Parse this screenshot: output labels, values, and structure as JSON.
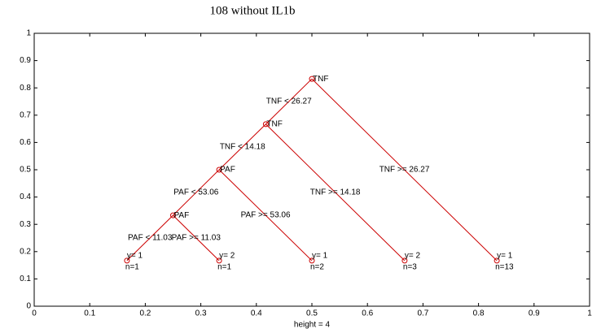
{
  "chart_data": {
    "type": "tree",
    "title": "108 without IL1b",
    "x_label": "height = 4",
    "xlim": [
      0,
      1
    ],
    "ylim": [
      0,
      1
    ],
    "xticks": [
      0,
      0.1,
      0.2,
      0.3,
      0.4,
      0.5,
      0.6,
      0.7,
      0.8,
      0.9,
      1
    ],
    "yticks": [
      0,
      0.1,
      0.2,
      0.3,
      0.4,
      0.5,
      0.6,
      0.7,
      0.8,
      0.9,
      1
    ],
    "color": "#cc0000",
    "root": {
      "label": "TNF",
      "x": 0.5,
      "y": 0.833,
      "children": [
        {
          "edge": "TNF < 26.27",
          "label": "TNF",
          "x": 0.417,
          "y": 0.667,
          "children": [
            {
              "edge": "TNF < 14.18",
              "label": "PAF",
              "x": 0.333,
              "y": 0.5,
              "children": [
                {
                  "edge": "PAF < 53.06",
                  "label": "PAF",
                  "x": 0.25,
                  "y": 0.333,
                  "children": [
                    {
                      "edge": "PAF < 11.03",
                      "label": "y= 1",
                      "count": "n=1",
                      "x": 0.167,
                      "y": 0.167
                    },
                    {
                      "edge": "PAF >= 11.03",
                      "label": "y= 2",
                      "count": "n=1",
                      "x": 0.333,
                      "y": 0.167
                    }
                  ]
                },
                {
                  "edge": "PAF >= 53.06",
                  "label": "y= 1",
                  "count": "n=2",
                  "x": 0.5,
                  "y": 0.167
                }
              ]
            },
            {
              "edge": "TNF >= 14.18",
              "label": "y= 2",
              "count": "n=3",
              "x": 0.667,
              "y": 0.167
            }
          ]
        },
        {
          "edge": "TNF >= 26.27",
          "label": "y= 1",
          "count": "n=13",
          "x": 0.833,
          "y": 0.167
        }
      ]
    }
  }
}
